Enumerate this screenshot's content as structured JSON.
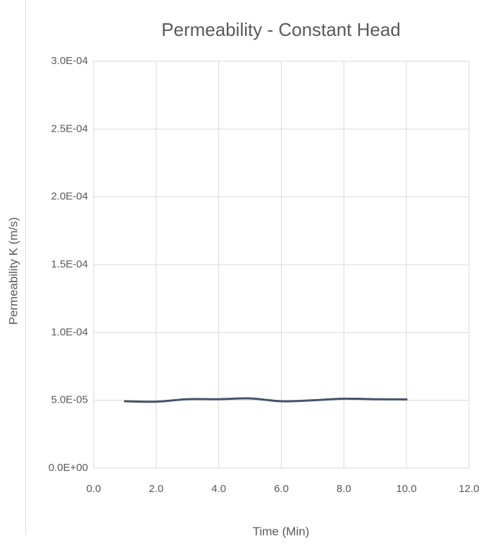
{
  "chart_data": {
    "type": "line",
    "title": "Permeability - Constant Head",
    "x_label": "Time (Min)",
    "y_label": "Permeability K (m/s)",
    "x": [
      1,
      2,
      3,
      4,
      5,
      6,
      7,
      8,
      9,
      10
    ],
    "series": [
      {
        "name": "Permeability",
        "color": "#44546a",
        "values": [
          4.93e-05,
          4.9e-05,
          5.08e-05,
          5.08e-05,
          5.14e-05,
          4.93e-05,
          5e-05,
          5.12e-05,
          5.08e-05,
          5.07e-05
        ]
      }
    ],
    "xlim": [
      0,
      12
    ],
    "xticks": [
      {
        "value": 0,
        "label": "0.0"
      },
      {
        "value": 2,
        "label": "2.0"
      },
      {
        "value": 4,
        "label": "4.0"
      },
      {
        "value": 6,
        "label": "6.0"
      },
      {
        "value": 8,
        "label": "8.0"
      },
      {
        "value": 10,
        "label": "10.0"
      },
      {
        "value": 12,
        "label": "12.0"
      }
    ],
    "ylim": [
      0,
      0.0003
    ],
    "yticks": [
      {
        "value": 0,
        "label": "0.0E+00"
      },
      {
        "value": 5e-05,
        "label": "5.0E-05"
      },
      {
        "value": 0.0001,
        "label": "1.0E-04"
      },
      {
        "value": 0.00015,
        "label": "1.5E-04"
      },
      {
        "value": 0.0002,
        "label": "2.0E-04"
      },
      {
        "value": 0.00025,
        "label": "2.5E-04"
      },
      {
        "value": 0.0003,
        "label": "3.0E-04"
      }
    ],
    "grid": true
  }
}
